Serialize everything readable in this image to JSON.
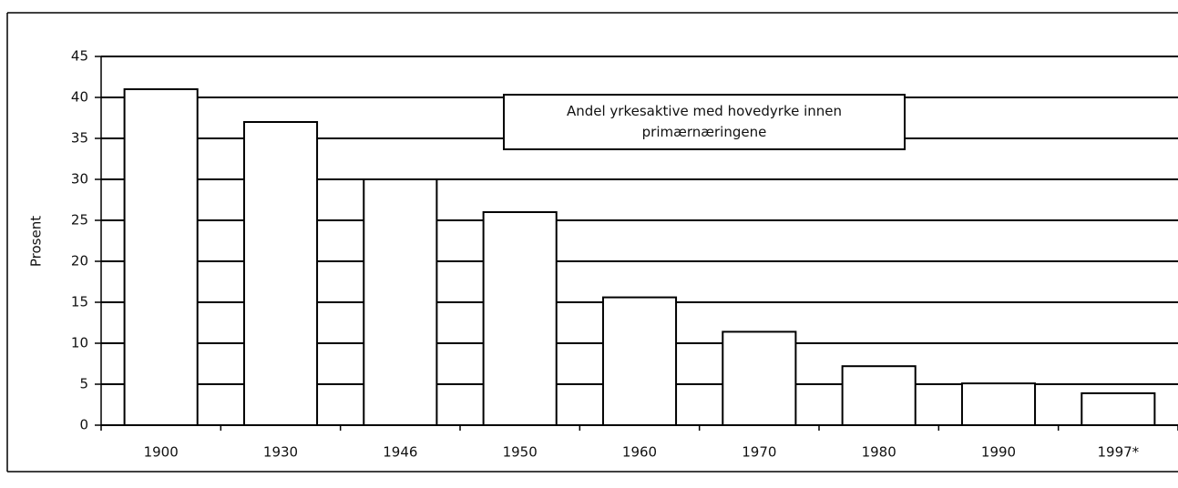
{
  "chart_data": {
    "type": "bar",
    "annotation": "Andel yrkesaktive med hovedyrke innen primærnæringene",
    "y_label": "Prosent",
    "categories": [
      "1900",
      "1930",
      "1946",
      "1950",
      "1960",
      "1970",
      "1980",
      "1990",
      "1997*"
    ],
    "values": [
      41,
      37,
      30,
      26,
      15.6,
      11.4,
      7.2,
      5.1,
      3.9
    ],
    "color": "#ffffff",
    "ylim": [
      0,
      45
    ],
    "yticks": [
      0,
      5,
      10,
      15,
      20,
      25,
      30,
      35,
      40,
      45
    ],
    "grid": true
  }
}
